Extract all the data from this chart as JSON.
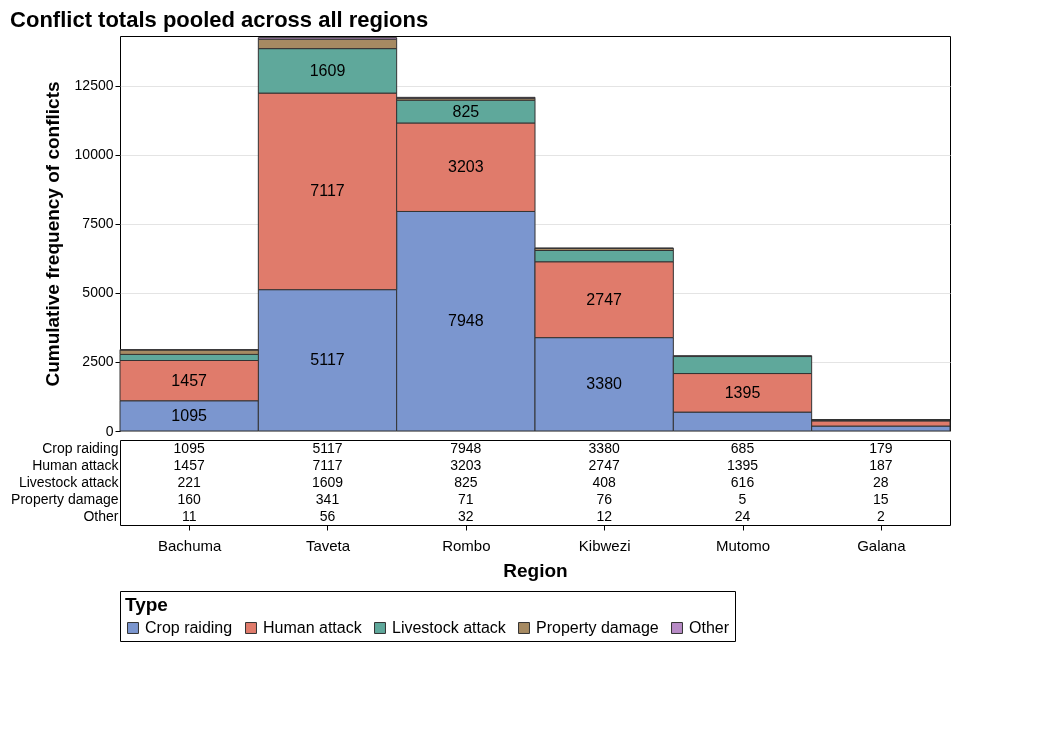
{
  "chart_data": {
    "type": "bar",
    "title": "Conflict totals pooled across all regions",
    "xlabel": "Region",
    "ylabel": "Cumulative frequency of conflicts",
    "legend_title": "Type",
    "categories": [
      "Bachuma",
      "Taveta",
      "Rombo",
      "Kibwezi",
      "Mutomo",
      "Galana"
    ],
    "stacked": true,
    "ylim": [
      0,
      14300
    ],
    "yticks": [
      0,
      2500,
      5000,
      7500,
      10000,
      12500
    ],
    "grid": "y",
    "legend": "bottom",
    "series": [
      {
        "name": "Crop raiding",
        "color": "#7b96cf",
        "values": [
          1095,
          5117,
          7948,
          3380,
          685,
          179
        ],
        "value_labels": [
          "1095",
          "5117",
          "7948",
          "3380",
          "685",
          "179"
        ]
      },
      {
        "name": "Human attack",
        "color": "#e07b6b",
        "values": [
          1457,
          7117,
          3203,
          2747,
          1395,
          187
        ],
        "value_labels": [
          "1457",
          "7117",
          "3203",
          "2747",
          "1395",
          "187"
        ]
      },
      {
        "name": "Livestock attack",
        "color": "#5fa89b",
        "values": [
          221,
          1609,
          825,
          408,
          616,
          28
        ],
        "value_labels": [
          "221",
          "1609",
          "825",
          "408",
          "616",
          "28"
        ]
      },
      {
        "name": "Property damage",
        "color": "#a68a62",
        "values": [
          160,
          341,
          71,
          76,
          5,
          15
        ],
        "value_labels": [
          "160",
          "341",
          "71",
          "76",
          "5",
          "15"
        ]
      },
      {
        "name": "Other",
        "color": "#b88bc6",
        "values": [
          11,
          56,
          32,
          12,
          24,
          2
        ],
        "value_labels": [
          "11",
          "56",
          "32",
          "12",
          "24",
          "2"
        ]
      }
    ]
  }
}
